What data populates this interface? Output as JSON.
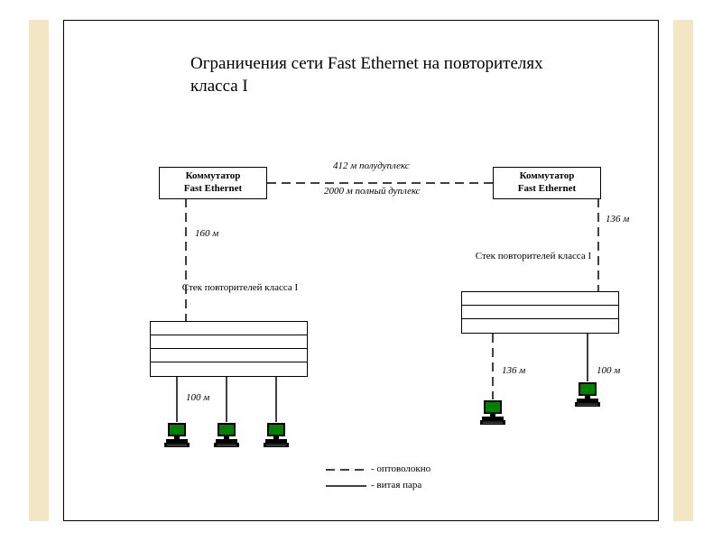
{
  "title": "Ограничения сети Fast Ethernet на повторителях класса I",
  "switches": {
    "left": {
      "line1": "Коммутатор",
      "line2": "Fast Ethernet"
    },
    "right": {
      "line1": "Коммутатор",
      "line2": "Fast Ethernet"
    }
  },
  "link_labels": {
    "half_duplex": "412 м  полудуплекс",
    "full_duplex": "2000 м  полный дуплекс"
  },
  "distances": {
    "left_down": "160 м",
    "right_down": "136 м",
    "left_pc": "100 м",
    "right_pc1": "136 м",
    "right_pc2": "100 м"
  },
  "repeater_labels": {
    "left": "Стек повторителей класса I",
    "right": "Стек повторителей класса I"
  },
  "legend": {
    "fiber": "- оптоволокно",
    "twisted": "- витая пара"
  },
  "colors": {
    "screen": "#008000",
    "body": "#000000",
    "bg": "#ffffff",
    "strip": "#f3e6c4"
  }
}
